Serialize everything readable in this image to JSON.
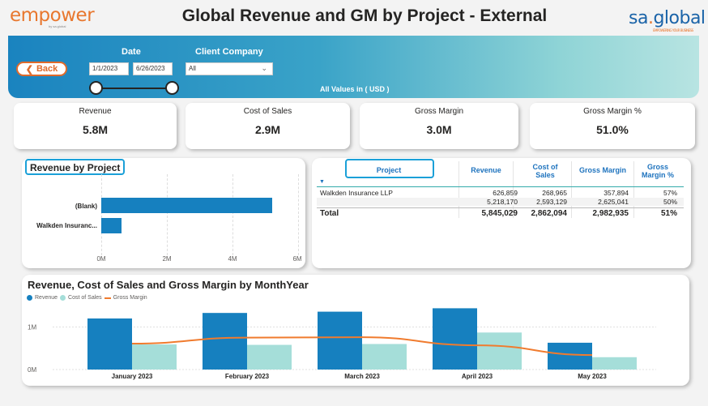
{
  "header": {
    "logo_left": "empower",
    "logo_left_sub": "by sa.global",
    "title": "Global Revenue and GM by Project - External",
    "logo_right_a": "sa",
    "logo_right_dot": ".",
    "logo_right_b": "global",
    "logo_right_sub": "EMPOWERING YOUR BUSINESS"
  },
  "filters": {
    "back_label": "Back",
    "date_label": "Date",
    "date_from": "1/1/2023",
    "date_to": "6/26/2023",
    "client_label": "Client Company",
    "client_value": "All",
    "values_note": "All Values in ( USD )"
  },
  "kpis": [
    {
      "label": "Revenue",
      "value": "5.8M"
    },
    {
      "label": "Cost of Sales",
      "value": "2.9M"
    },
    {
      "label": "Gross Margin",
      "value": "3.0M"
    },
    {
      "label": "Gross Margin %",
      "value": "51.0%"
    }
  ],
  "revenue_by_project": {
    "title": "Revenue by Project",
    "chart_data": {
      "type": "bar",
      "orientation": "horizontal",
      "categories": [
        "(Blank)",
        "Walkden Insuranc..."
      ],
      "values": [
        5218170,
        626859
      ],
      "xlim": [
        0,
        6000000
      ],
      "xticks": [
        "0M",
        "2M",
        "4M",
        "6M"
      ],
      "color": "#1680bf"
    }
  },
  "project_table": {
    "headers": [
      "Project",
      "Revenue",
      "Cost of Sales",
      "Gross Margin",
      "Gross Margin %"
    ],
    "header_cos_lines": [
      "Cost of",
      "Sales"
    ],
    "header_gmp_lines": [
      "Gross",
      "Margin %"
    ],
    "rows": [
      {
        "project": "Walkden Insurance LLP",
        "revenue": "626,859",
        "cos": "268,965",
        "gm": "357,894",
        "gmp": "57%"
      },
      {
        "project": "",
        "revenue": "5,218,170",
        "cos": "2,593,129",
        "gm": "2,625,041",
        "gmp": "50%"
      }
    ],
    "total": {
      "project": "Total",
      "revenue": "5,845,029",
      "cos": "2,862,094",
      "gm": "2,982,935",
      "gmp": "51%"
    }
  },
  "monthly": {
    "title": "Revenue, Cost of Sales and Gross Margin by MonthYear",
    "legend": [
      "Revenue",
      "Cost of Sales",
      "Gross Margin"
    ],
    "chart_data": {
      "type": "bar",
      "categories": [
        "January 2023",
        "February 2023",
        "March 2023",
        "April 2023",
        "May 2023"
      ],
      "series": [
        {
          "name": "Revenue",
          "type": "bar",
          "color": "#1680bf",
          "values": [
            1200000,
            1330000,
            1360000,
            1440000,
            630000
          ]
        },
        {
          "name": "Cost of Sales",
          "type": "bar",
          "color": "#a5ded9",
          "values": [
            590000,
            580000,
            600000,
            870000,
            290000
          ]
        },
        {
          "name": "Gross Margin",
          "type": "line",
          "color": "#f07b2e",
          "values": [
            610000,
            750000,
            760000,
            570000,
            340000
          ]
        }
      ],
      "ylim": [
        0,
        1600000
      ],
      "yticks": [
        "0M",
        "1M"
      ]
    }
  }
}
